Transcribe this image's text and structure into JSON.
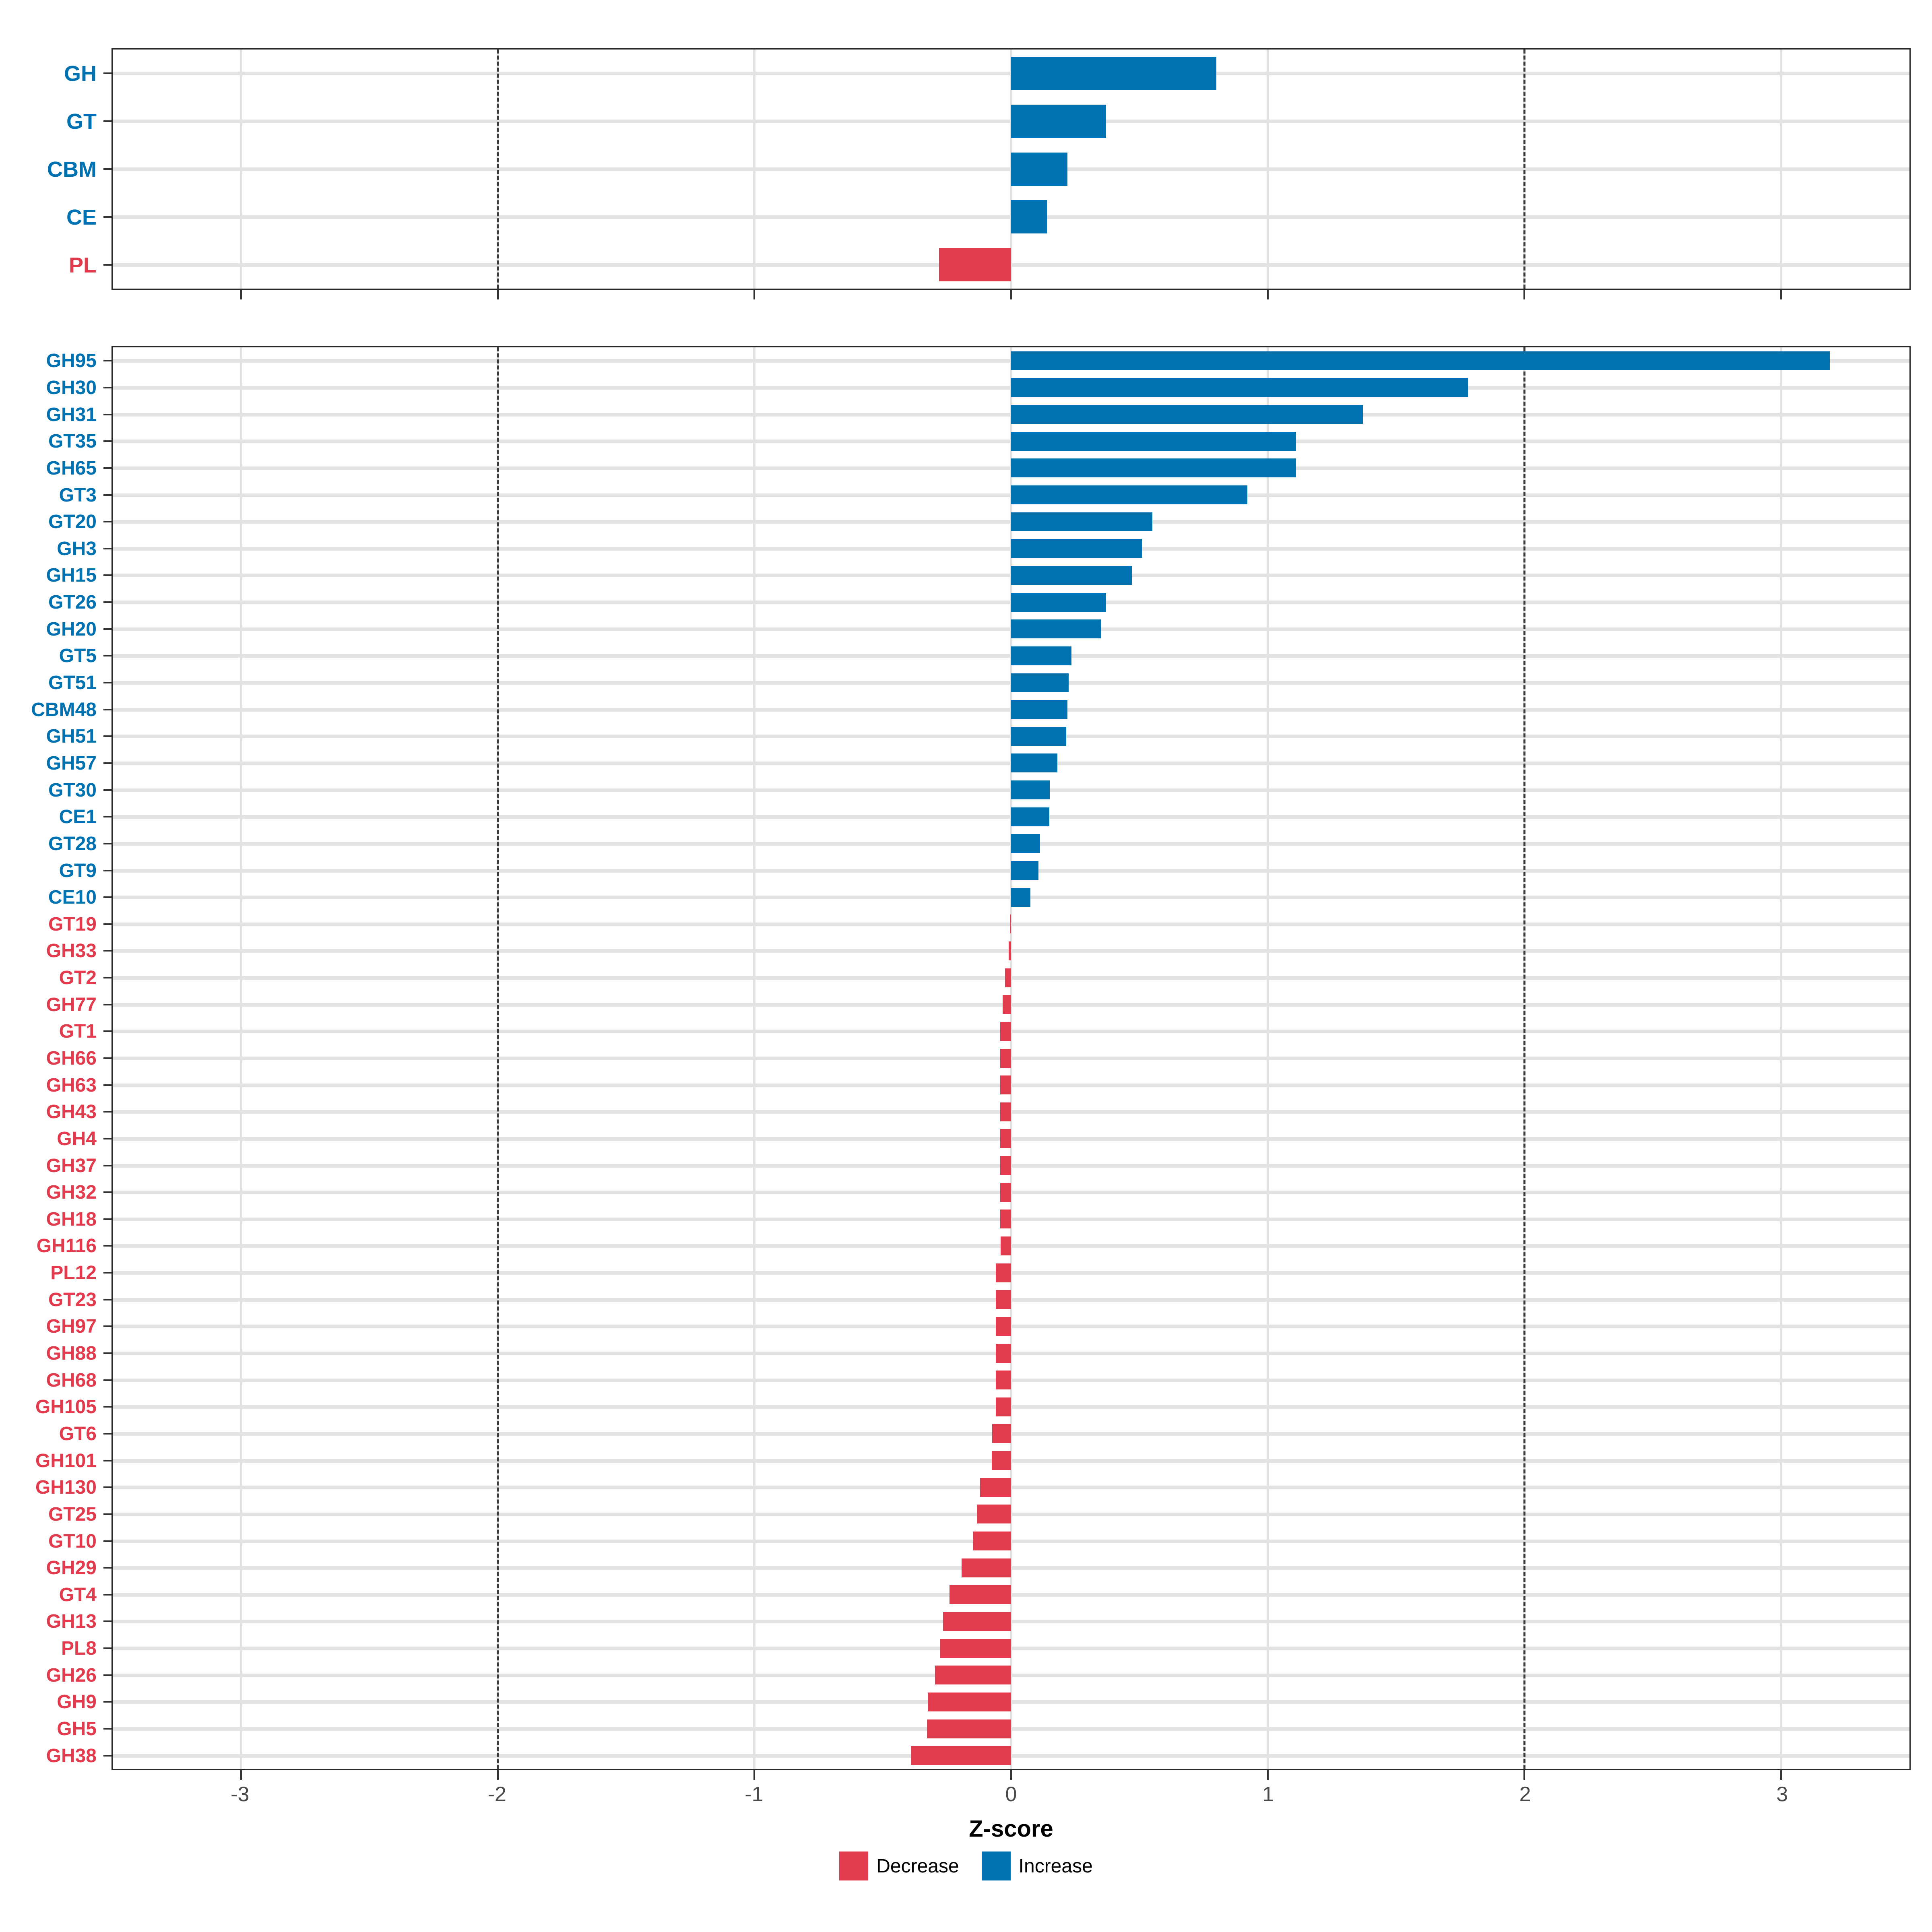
{
  "chart_data": {
    "type": "bar",
    "orientation": "horizontal",
    "title": "",
    "xlabel": "Z-score",
    "grid": true,
    "legend_position": "bottom-center",
    "shared": {
      "xlabel": "Z-score",
      "xlim": [
        -3.5,
        3.5
      ],
      "xticks": [
        -3,
        -2,
        -1,
        0,
        1,
        2,
        3
      ],
      "xtick_labels": [
        "-3",
        "-2",
        "-1",
        "0",
        "1",
        "2",
        "3"
      ],
      "dashed_lines_at": [
        -2,
        2
      ]
    },
    "colors": {
      "increase": "#0072B2",
      "decrease": "#E23B4D",
      "gridline": "#e3e3e3",
      "dashed_line": "#3c3c3c",
      "axis_text": "#4a4a4a"
    },
    "panels": [
      {
        "name": "cazyme-families",
        "categories": [
          "GH",
          "GT",
          "CBM",
          "CE",
          "PL"
        ],
        "values": [
          0.8,
          0.37,
          0.22,
          0.14,
          -0.28
        ]
      },
      {
        "name": "cazyme-subfamilies",
        "categories": [
          "GH95",
          "GH30",
          "GH31",
          "GT35",
          "GH65",
          "GT3",
          "GT20",
          "GH3",
          "GH15",
          "GT26",
          "GH20",
          "GT5",
          "GT51",
          "CBM48",
          "GH51",
          "GH57",
          "GT30",
          "CE1",
          "GT28",
          "GT9",
          "CE10",
          "GT19",
          "GH33",
          "GT2",
          "GH77",
          "GT1",
          "GH66",
          "GH63",
          "GH43",
          "GH4",
          "GH37",
          "GH32",
          "GH18",
          "GH116",
          "PL12",
          "GT23",
          "GH97",
          "GH88",
          "GH68",
          "GH105",
          "GT6",
          "GH101",
          "GH130",
          "GT25",
          "GT10",
          "GH29",
          "GT4",
          "GH13",
          "PL8",
          "GH26",
          "GH9",
          "GH5",
          "GH38"
        ],
        "values": [
          3.19,
          1.78,
          1.37,
          1.11,
          1.11,
          0.92,
          0.55,
          0.51,
          0.47,
          0.37,
          0.35,
          0.235,
          0.225,
          0.22,
          0.215,
          0.18,
          0.151,
          0.149,
          0.113,
          0.107,
          0.076,
          -0.005,
          -0.01,
          -0.024,
          -0.033,
          -0.042,
          -0.042,
          -0.042,
          -0.043,
          -0.042,
          -0.043,
          -0.042,
          -0.042,
          -0.041,
          -0.06,
          -0.059,
          -0.059,
          -0.06,
          -0.06,
          -0.06,
          -0.073,
          -0.075,
          -0.12,
          -0.133,
          -0.147,
          -0.193,
          -0.24,
          -0.265,
          -0.276,
          -0.296,
          -0.325,
          -0.327,
          -0.39
        ]
      }
    ],
    "legend": [
      {
        "label": "Decrease",
        "color": "#E23B4D"
      },
      {
        "label": "Increase",
        "color": "#0072B2"
      }
    ]
  }
}
